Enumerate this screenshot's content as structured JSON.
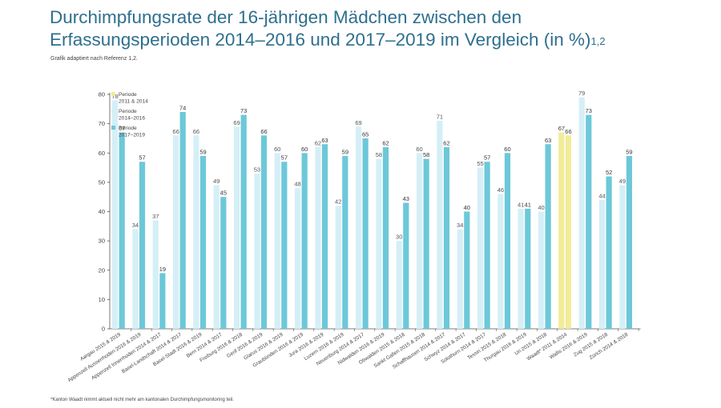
{
  "header": {
    "title_line1": "Durchimpfungsrate der 16-jährigen Mädchen zwischen den",
    "title_line2": "Erfassungsperioden 2014–2016 und 2017–2019 im Vergleich (in %)",
    "title_superscript": "1,2",
    "subtitle": "Grafik adaptiert nach Referenz 1,2.",
    "footnote": "*Kanton Waadt nimmt aktuell nicht mehr am kantonalen Durchimpfungsmonitoring teil."
  },
  "colors": {
    "series_a": "#f0ec98",
    "series_b": "#d5eff7",
    "series_c": "#6cc8d9",
    "axis": "#555555",
    "label": "#444444"
  },
  "chart_data": {
    "type": "bar",
    "ylim": [
      0,
      80
    ],
    "yticks": [
      0,
      10,
      20,
      30,
      40,
      50,
      60,
      70,
      80
    ],
    "legend_position": "top-left",
    "legend": [
      {
        "key": "a",
        "lines": [
          "Periode",
          "2011 & 2014"
        ]
      },
      {
        "key": "b",
        "lines": [
          "Periode",
          "2014–2016"
        ]
      },
      {
        "key": "c",
        "lines": [
          "Periode",
          "2017–2019"
        ]
      }
    ],
    "categories": [
      {
        "label": "Aargau 2015 & 2019",
        "bars": [
          {
            "s": "b",
            "v": 78
          },
          {
            "s": "c",
            "v": 67
          }
        ]
      },
      {
        "label": "Appenzell Ausserrhoden 2016 & 2019",
        "bars": [
          {
            "s": "b",
            "v": 34
          },
          {
            "s": "c",
            "v": 57
          }
        ]
      },
      {
        "label": "Appenzell Innerrhoden 2014 & 2017",
        "bars": [
          {
            "s": "b",
            "v": 37
          },
          {
            "s": "c",
            "v": 19
          }
        ]
      },
      {
        "label": "Basel-Landschaft 2014 & 2017",
        "bars": [
          {
            "s": "b",
            "v": 66
          },
          {
            "s": "c",
            "v": 74
          }
        ]
      },
      {
        "label": "Basel-Stadt 2016 & 2019",
        "bars": [
          {
            "s": "b",
            "v": 66
          },
          {
            "s": "c",
            "v": 59
          }
        ]
      },
      {
        "label": "Bern 2014 & 2017",
        "bars": [
          {
            "s": "b",
            "v": 49
          },
          {
            "s": "c",
            "v": 45
          }
        ]
      },
      {
        "label": "Freiburg 2016 & 2018",
        "bars": [
          {
            "s": "b",
            "v": 69
          },
          {
            "s": "c",
            "v": 73
          }
        ]
      },
      {
        "label": "Genf 2016 & 2019",
        "bars": [
          {
            "s": "b",
            "v": 53
          },
          {
            "s": "c",
            "v": 66
          }
        ]
      },
      {
        "label": "Glarus 2016 & 2019",
        "bars": [
          {
            "s": "b",
            "v": 60
          },
          {
            "s": "c",
            "v": 57
          }
        ]
      },
      {
        "label": "Graubünden 2016 & 2019",
        "bars": [
          {
            "s": "b",
            "v": 48
          },
          {
            "s": "c",
            "v": 60
          }
        ]
      },
      {
        "label": "Jura 2016 & 2019",
        "bars": [
          {
            "s": "b",
            "v": 62
          },
          {
            "s": "c",
            "v": 63
          }
        ]
      },
      {
        "label": "Luzern 2016 & 2019",
        "bars": [
          {
            "s": "b",
            "v": 42
          },
          {
            "s": "c",
            "v": 59
          }
        ]
      },
      {
        "label": "Neuenburg 2014 & 2017",
        "bars": [
          {
            "s": "b",
            "v": 69
          },
          {
            "s": "c",
            "v": 65
          }
        ]
      },
      {
        "label": "Nidwalden 2016 & 2019",
        "bars": [
          {
            "s": "b",
            "v": 58
          },
          {
            "s": "c",
            "v": 62
          }
        ]
      },
      {
        "label": "Obwalden 2015 & 2018",
        "bars": [
          {
            "s": "b",
            "v": 30
          },
          {
            "s": "c",
            "v": 43
          }
        ]
      },
      {
        "label": "Sankt Gallen 2015 & 2018",
        "bars": [
          {
            "s": "b",
            "v": 60
          },
          {
            "s": "c",
            "v": 58
          }
        ]
      },
      {
        "label": "Schaffhausen 2014 & 2017",
        "bars": [
          {
            "s": "b",
            "v": 71
          },
          {
            "s": "c",
            "v": 62
          }
        ]
      },
      {
        "label": "Schwyz 2014 & 2017",
        "bars": [
          {
            "s": "b",
            "v": 34
          },
          {
            "s": "c",
            "v": 40
          }
        ]
      },
      {
        "label": "Solothurn 2014 & 2017",
        "bars": [
          {
            "s": "b",
            "v": 55
          },
          {
            "s": "c",
            "v": 57
          }
        ]
      },
      {
        "label": "Tessin 2015 & 2018",
        "bars": [
          {
            "s": "b",
            "v": 46
          },
          {
            "s": "c",
            "v": 60
          }
        ]
      },
      {
        "label": "Thurgau 2016 & 2019",
        "bars": [
          {
            "s": "b",
            "v": 41
          },
          {
            "s": "c",
            "v": 41
          }
        ]
      },
      {
        "label": "Uri 2015 & 2018",
        "bars": [
          {
            "s": "b",
            "v": 40
          },
          {
            "s": "c",
            "v": 63
          }
        ]
      },
      {
        "label": "Waadt* 2011 & 2014",
        "bars": [
          {
            "s": "a",
            "v": 67
          },
          {
            "s": "a",
            "v": 66
          }
        ]
      },
      {
        "label": "Wallis 2016 & 2019",
        "bars": [
          {
            "s": "b",
            "v": 79
          },
          {
            "s": "c",
            "v": 73
          }
        ]
      },
      {
        "label": "Zug 2015 & 2018",
        "bars": [
          {
            "s": "b",
            "v": 44
          },
          {
            "s": "c",
            "v": 52
          }
        ]
      },
      {
        "label": "Zürich 2014 & 2018",
        "bars": [
          {
            "s": "b",
            "v": 49
          },
          {
            "s": "c",
            "v": 59
          }
        ]
      }
    ]
  }
}
